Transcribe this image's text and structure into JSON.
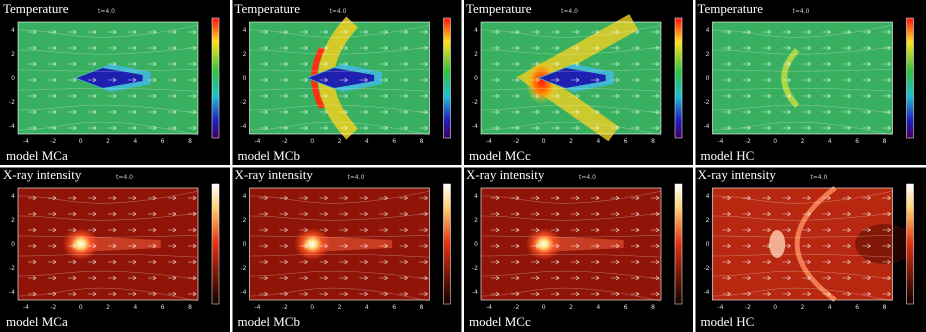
{
  "panels": [
    {
      "title": "Temperature",
      "time": "t=4.0",
      "model": "model MCa",
      "kind": "temperature"
    },
    {
      "title": "Temperature",
      "time": "t=4.0",
      "model": "model MCb",
      "kind": "temperature"
    },
    {
      "title": "Temperature",
      "time": "t=4.0",
      "model": "model MCc",
      "kind": "temperature"
    },
    {
      "title": "Temperature",
      "time": "t=4.0",
      "model": "model HC",
      "kind": "temperature"
    },
    {
      "title": "X-ray intensity",
      "time": "t=4.0",
      "model": "model MCa",
      "kind": "xray"
    },
    {
      "title": "X-ray intensity",
      "time": "t=4.0",
      "model": "model MCb",
      "kind": "xray"
    },
    {
      "title": "X-ray intensity",
      "time": "t=4.0",
      "model": "model MCc",
      "kind": "xray"
    },
    {
      "title": "X-ray intensity",
      "time": "t=4.0",
      "model": "model HC",
      "kind": "xray"
    }
  ],
  "x_ticks": [
    -4,
    -2,
    0,
    2,
    4,
    6,
    8
  ],
  "y_ticks": [
    -4,
    -2,
    0,
    2,
    4
  ]
}
